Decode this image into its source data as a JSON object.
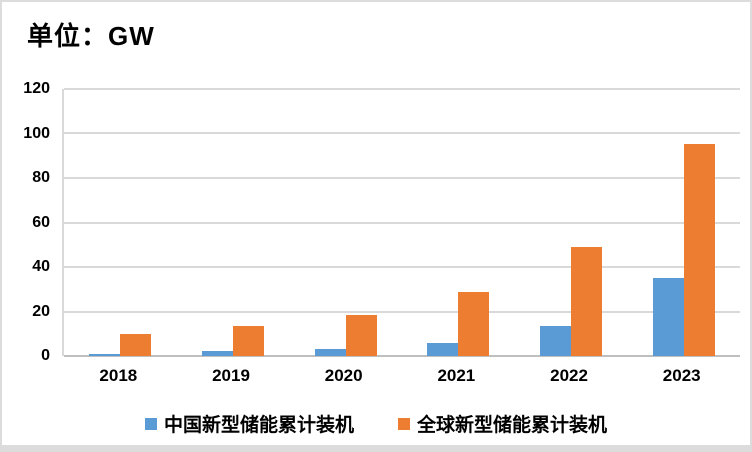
{
  "chart_data": {
    "type": "bar",
    "title": "单位：GW",
    "categories": [
      "2018",
      "2019",
      "2020",
      "2021",
      "2022",
      "2023"
    ],
    "series": [
      {
        "name": "中国新型储能累计装机",
        "color": "#5B9BD5",
        "values": [
          1.1,
          2.1,
          3.3,
          6.0,
          13.5,
          35.0
        ]
      },
      {
        "name": "全球新型储能累计装机",
        "color": "#ED7D31",
        "values": [
          10.1,
          13.6,
          18.6,
          28.9,
          49.0,
          95.5
        ]
      }
    ],
    "xlabel": "",
    "ylabel": "",
    "ylim": [
      0,
      120
    ],
    "yticks": [
      0,
      20,
      40,
      60,
      80,
      100,
      120
    ],
    "grid": true,
    "legend_position": "bottom",
    "colors": {
      "gridline": "#D9D9D9",
      "axis_line": "#BFBFBF",
      "text": "#000000",
      "frame_border": "#DCDCDC",
      "background": "#FFFFFF"
    }
  }
}
